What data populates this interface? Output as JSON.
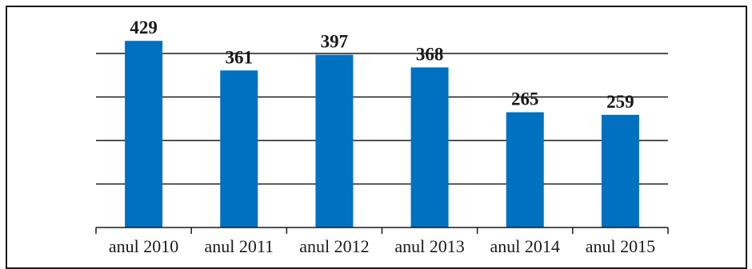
{
  "chart_data": {
    "type": "bar",
    "categories": [
      "anul 2010",
      "anul 2011",
      "anul 2012",
      "anul 2013",
      "anul 2014",
      "anul 2015"
    ],
    "values": [
      429,
      361,
      397,
      368,
      265,
      259
    ],
    "data_labels": [
      "429",
      "361",
      "397",
      "368",
      "265",
      "259"
    ],
    "title": "",
    "xlabel": "",
    "ylabel": "",
    "ylim": [
      0,
      400
    ],
    "grid": true,
    "legend": "none",
    "bar_color": "#0070C0"
  }
}
